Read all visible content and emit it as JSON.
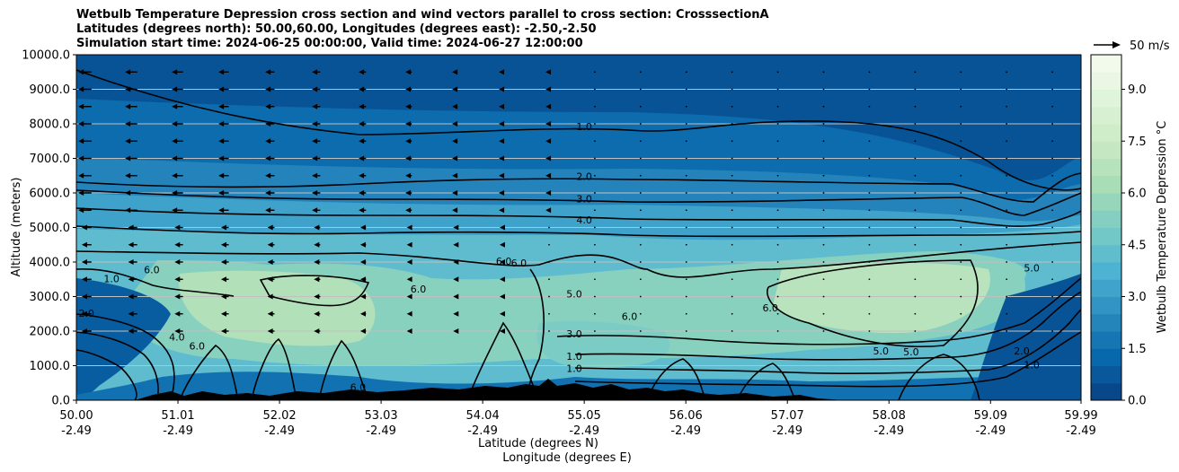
{
  "chart_data": {
    "type": "contour",
    "title": [
      "Wetbulb Temperature Depression cross section and wind vectors parallel to cross section: CrosssectionA",
      "Latitudes (degrees north): 50.00,60.00, Longitudes (degrees east): -2.50,-2.50",
      "Simulation start time: 2024-06-25 00:00:00, Valid time: 2024-06-27 12:00:00"
    ],
    "xlabel": "Latitude (degrees N)",
    "xlabel2": "Longitude (degrees E)",
    "ylabel": "Altitude (meters)",
    "xlim": [
      50.0,
      59.99
    ],
    "ylim": [
      0,
      10000
    ],
    "x_ticks": [
      {
        "lat": "50.00",
        "lon": "-2.49",
        "x": 50.0
      },
      {
        "lat": "51.01",
        "lon": "-2.49",
        "x": 51.01
      },
      {
        "lat": "52.02",
        "lon": "-2.49",
        "x": 52.02
      },
      {
        "lat": "53.03",
        "lon": "-2.49",
        "x": 53.03
      },
      {
        "lat": "54.04",
        "lon": "-2.49",
        "x": 54.04
      },
      {
        "lat": "55.05",
        "lon": "-2.49",
        "x": 55.05
      },
      {
        "lat": "56.06",
        "lon": "-2.49",
        "x": 56.06
      },
      {
        "lat": "57.07",
        "lon": "-2.49",
        "x": 57.07
      },
      {
        "lat": "58.08",
        "lon": "-2.49",
        "x": 58.08
      },
      {
        "lat": "59.09",
        "lon": "-2.49",
        "x": 59.09
      },
      {
        "lat": "59.99",
        "lon": "-2.49",
        "x": 59.99
      }
    ],
    "y_ticks": [
      "0.0",
      "1000.0",
      "2000.0",
      "3000.0",
      "4000.0",
      "5000.0",
      "6000.0",
      "7000.0",
      "8000.0",
      "9000.0",
      "10000.0"
    ],
    "y_tick_values": [
      0,
      1000,
      2000,
      3000,
      4000,
      5000,
      6000,
      7000,
      8000,
      9000,
      10000
    ],
    "grid": "horizontal",
    "colorbar": {
      "label": "Wetbulb Temperature Depression °C",
      "ticks": [
        "0.0",
        "1.5",
        "3.0",
        "4.5",
        "6.0",
        "7.5",
        "9.0"
      ],
      "tick_values": [
        0,
        1.5,
        3.0,
        4.5,
        6.0,
        7.5,
        9.0
      ],
      "range": [
        0,
        10
      ],
      "colormap": "GnBu_r"
    },
    "wind_key": "50 m/s",
    "contour_levels": [
      1.0,
      2.0,
      3.0,
      4.0,
      5.0,
      6.0
    ],
    "contour_labels": [
      {
        "text": "1.0",
        "x": 55.05,
        "y": 7900
      },
      {
        "text": "2.0",
        "x": 55.05,
        "y": 6450
      },
      {
        "text": "3.0",
        "x": 55.05,
        "y": 5800
      },
      {
        "text": "4.0",
        "x": 55.05,
        "y": 5200
      },
      {
        "text": "6.0",
        "x": 54.25,
        "y": 4000
      },
      {
        "text": "6.0",
        "x": 54.4,
        "y": 3950
      },
      {
        "text": "5.0",
        "x": 54.95,
        "y": 3050
      },
      {
        "text": "6.0",
        "x": 55.5,
        "y": 2400
      },
      {
        "text": "6.0",
        "x": 56.9,
        "y": 2650
      },
      {
        "text": "3.0",
        "x": 54.95,
        "y": 1900
      },
      {
        "text": "1.0",
        "x": 54.95,
        "y": 1250
      },
      {
        "text": "1.0",
        "x": 54.95,
        "y": 900
      },
      {
        "text": "5.0",
        "x": 58.0,
        "y": 1400
      },
      {
        "text": "5.0",
        "x": 58.3,
        "y": 1380
      },
      {
        "text": "1.0",
        "x": 59.5,
        "y": 1000
      },
      {
        "text": "5.0",
        "x": 59.5,
        "y": 3800
      },
      {
        "text": "1.0",
        "x": 50.35,
        "y": 3500
      },
      {
        "text": "6.0",
        "x": 50.75,
        "y": 3750
      },
      {
        "text": "6.0",
        "x": 53.4,
        "y": 3200
      },
      {
        "text": "4.0",
        "x": 51.0,
        "y": 1800
      },
      {
        "text": "6.0",
        "x": 51.2,
        "y": 1550
      },
      {
        "text": "2.0",
        "x": 50.1,
        "y": 2500
      },
      {
        "text": "6.0",
        "x": 52.8,
        "y": 350
      },
      {
        "text": "2.0",
        "x": 59.4,
        "y": 1400
      }
    ]
  },
  "colors": {
    "cmap": [
      "#084081",
      "#0868ac",
      "#2b8cbe",
      "#4eb3d3",
      "#7bccc4",
      "#a8ddb5",
      "#ccebc5",
      "#e0f3db",
      "#f7fcf0"
    ],
    "contour_line": "#000000",
    "terrain": "#000000",
    "grid": "#c0c0c0"
  }
}
